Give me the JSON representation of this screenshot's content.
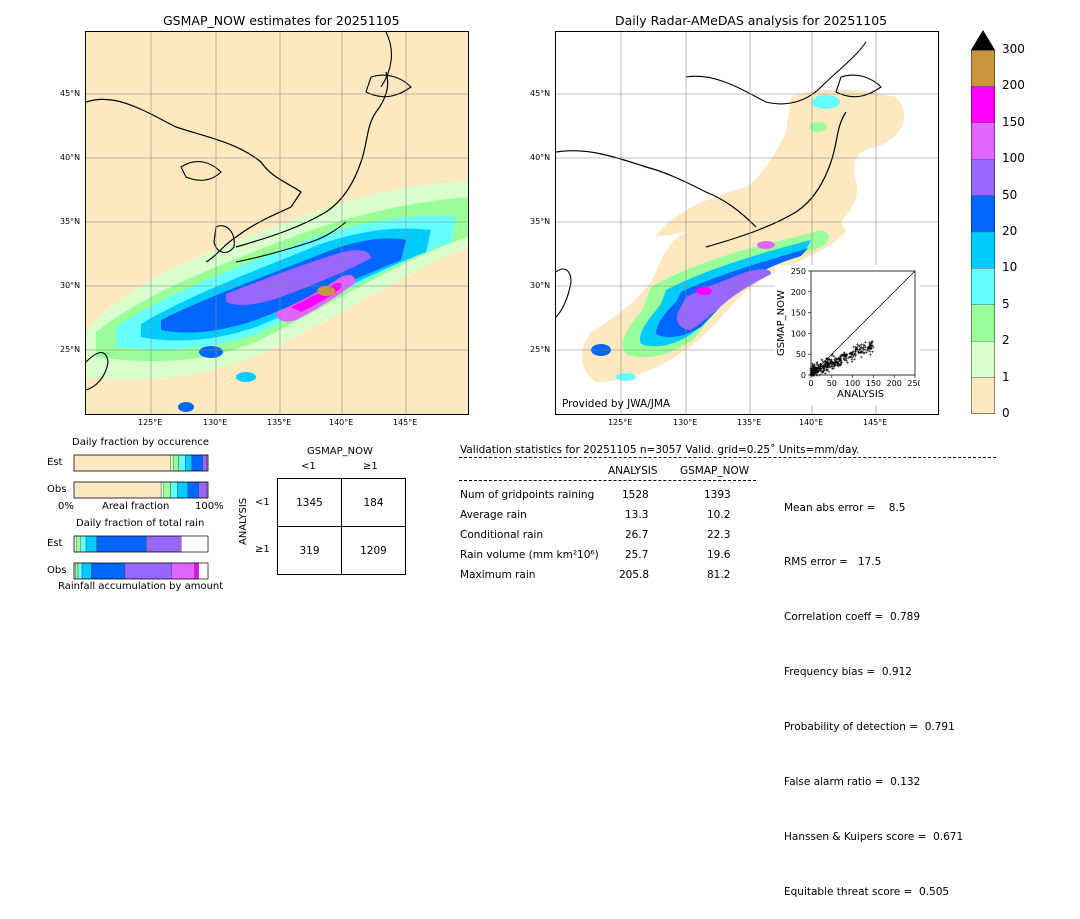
{
  "left_map": {
    "title": "GSMAP_NOW estimates for 20251105",
    "lat_labels": [
      "45°N",
      "40°N",
      "35°N",
      "30°N",
      "25°N"
    ],
    "lon_labels": [
      "125°E",
      "130°E",
      "135°E",
      "140°E",
      "145°E"
    ]
  },
  "right_map": {
    "title": "Daily Radar-AMeDAS analysis for 20251105",
    "lat_labels": [
      "45°N",
      "40°N",
      "35°N",
      "30°N",
      "25°N"
    ],
    "lon_labels": [
      "125°E",
      "130°E",
      "135°E",
      "140°E",
      "145°E"
    ],
    "credit": "Provided by JWA/JMA"
  },
  "colorbar": {
    "ticks": [
      "300",
      "200",
      "150",
      "100",
      "50",
      "20",
      "10",
      "5",
      "2",
      "1",
      "0"
    ],
    "colors": [
      "#c8963c",
      "#ff00ff",
      "#e066ff",
      "#9966ff",
      "#0066ff",
      "#00ccff",
      "#66ffff",
      "#99ff99",
      "#d9ffcc",
      "#fde8c0"
    ],
    "over_color": "#000000"
  },
  "chart_data": [
    {
      "type": "scatter",
      "title": "",
      "xlabel": "ANALYSIS",
      "ylabel": "GSMAP_NOW",
      "xlim": [
        0,
        250
      ],
      "ylim": [
        0,
        250
      ],
      "xticks": [
        "0",
        "50",
        "100",
        "150",
        "200",
        "250"
      ],
      "yticks": [
        "0",
        "50",
        "100",
        "150",
        "200",
        "250"
      ],
      "reference_line": "y=x"
    },
    {
      "type": "bar",
      "title": "Daily fraction by occurence",
      "rows": [
        "Est",
        "Obs"
      ],
      "xlabel": "Areal fraction",
      "axis_labels": [
        "0%",
        "100%"
      ],
      "series": [
        {
          "row": "Est",
          "fractions": [
            0.72,
            0.02,
            0.04,
            0.05,
            0.05,
            0.08,
            0.03,
            0.01
          ]
        },
        {
          "row": "Obs",
          "fractions": [
            0.65,
            0.02,
            0.05,
            0.05,
            0.08,
            0.08,
            0.06,
            0.01
          ]
        }
      ]
    },
    {
      "type": "bar",
      "title": "Daily fraction of total rain",
      "rows": [
        "Est",
        "Obs"
      ],
      "xlabel": "Rainfall accumulation by amount",
      "series": [
        {
          "row": "Est",
          "fractions": [
            0.02,
            0.03,
            0.04,
            0.08,
            0.37,
            0.26,
            0.0,
            0.0
          ]
        },
        {
          "row": "Obs",
          "fractions": [
            0.01,
            0.02,
            0.03,
            0.07,
            0.25,
            0.35,
            0.17,
            0.03
          ]
        }
      ]
    }
  ],
  "contingency": {
    "col_header": "GSMAP_NOW",
    "row_header": "ANALYSIS",
    "col_labels": [
      "<1",
      "≥1"
    ],
    "row_labels": [
      "<1",
      "≥1"
    ],
    "cells": [
      [
        "1345",
        "184"
      ],
      [
        "319",
        "1209"
      ]
    ]
  },
  "validation": {
    "header": "Validation statistics for 20251105  n=3057 Valid. grid=0.25˚ Units=mm/day.",
    "col_analysis": "ANALYSIS",
    "col_gsmap": "GSMAP_NOW",
    "rows": [
      {
        "label": "Num of gridpoints raining",
        "analysis": "1528",
        "gsmap": "1393"
      },
      {
        "label": "Average rain",
        "analysis": "13.3",
        "gsmap": "10.2"
      },
      {
        "label": "Conditional rain",
        "analysis": "26.7",
        "gsmap": "22.3"
      },
      {
        "label": "Rain volume (mm km²10⁶)",
        "analysis": "25.7",
        "gsmap": "19.6"
      },
      {
        "label": "Maximum rain",
        "analysis": "205.8",
        "gsmap": "81.2"
      }
    ],
    "scores": [
      "Mean abs error =    8.5",
      "RMS error =   17.5",
      "Correlation coeff =  0.789",
      "Frequency bias =  0.912",
      "Probability of detection =  0.791",
      "False alarm ratio =  0.132",
      "Hanssen & Kuipers score =  0.671",
      "Equitable threat score =  0.505"
    ]
  }
}
